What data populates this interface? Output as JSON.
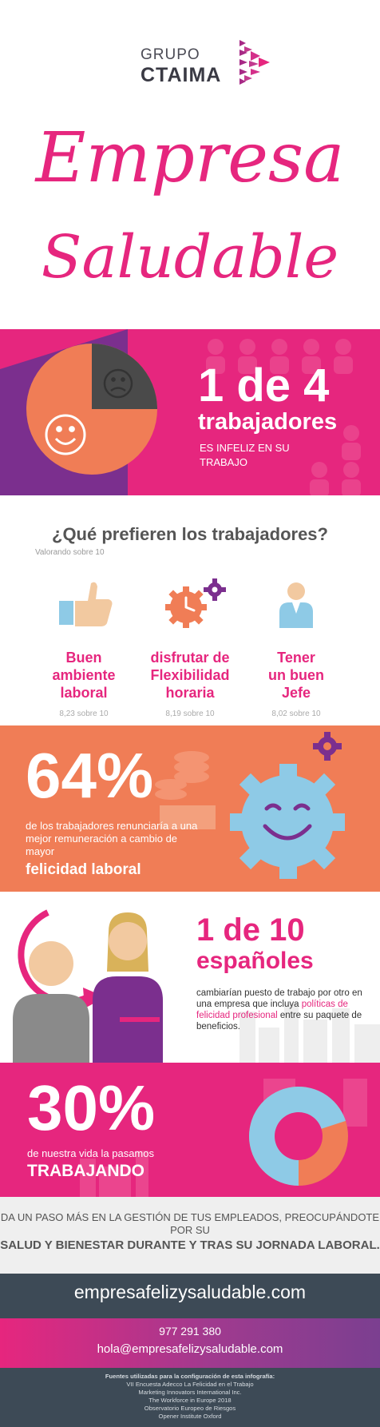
{
  "header": {
    "logo_line1": "GRUPO",
    "logo_line2": "CTAIMA",
    "title_line1": "Empresa",
    "title_line2": "Saludable"
  },
  "stat1": {
    "headline": "1 de 4",
    "subject": "trabajadores",
    "detail": "ES INFELIZ EN SU TRABAJO",
    "pie_fraction_unhappy": 0.25
  },
  "preferences": {
    "title": "¿Qué prefieren los trabajadores?",
    "subtitle": "Valorando sobre 10",
    "items": [
      {
        "icon": "thumbs-up-icon",
        "label": "Buen\nambiente\nlaboral",
        "score": "8,23 sobre 10"
      },
      {
        "icon": "gears-clock-icon",
        "label": "disfrutar de\nFlexibilidad\nhoraria",
        "score": "8,19 sobre 10"
      },
      {
        "icon": "boss-icon",
        "label": "Tener\nun buen\nJefe",
        "score": "8,02 sobre 10"
      }
    ]
  },
  "stat2": {
    "headline": "64%",
    "text": "de los trabajadores renunciaría a una mejor remuneración a cambio de mayor",
    "emphasis": "felicidad laboral"
  },
  "stat3": {
    "headline": "1 de 10",
    "subject": "españoles",
    "text_before": "cambiarían puesto de trabajo por otro en una empresa que incluya",
    "highlight": "políticas de felicidad profesional",
    "text_after": "entre su  paquete de beneficios."
  },
  "stat4": {
    "headline": "30%",
    "sub": "de nuestra vida la pasamos",
    "emphasis": "TRABAJANDO",
    "donut_fraction": 0.3
  },
  "cta": {
    "line1": "DA UN PASO MÁS EN LA GESTIÓN DE TUS EMPLEADOS, PREOCUPÁNDOTE POR SU",
    "line2": "SALUD Y BIENESTAR DURANTE Y TRAS SU JORNADA LABORAL."
  },
  "contact": {
    "website": "empresafelizysaludable.com",
    "phone": "977 291 380",
    "email": "hola@empresafelizysaludable.com"
  },
  "sources": {
    "heading": "Fuentes utilizadas para la configuración de esta infografía:",
    "items": [
      "VII Encuesta Adecco La Felicidad en el Trabajo",
      "Marketing Innovators International Inc.",
      "The Workforce in Europe 2018",
      "Observatorio Europeo de Riesgos",
      "Opener Institute Oxford"
    ]
  },
  "colors": {
    "pink": "#e6267e",
    "orange": "#f07d56",
    "purple": "#7b2f8e",
    "dark": "#3d4a56",
    "light_blue": "#8ecae6"
  }
}
